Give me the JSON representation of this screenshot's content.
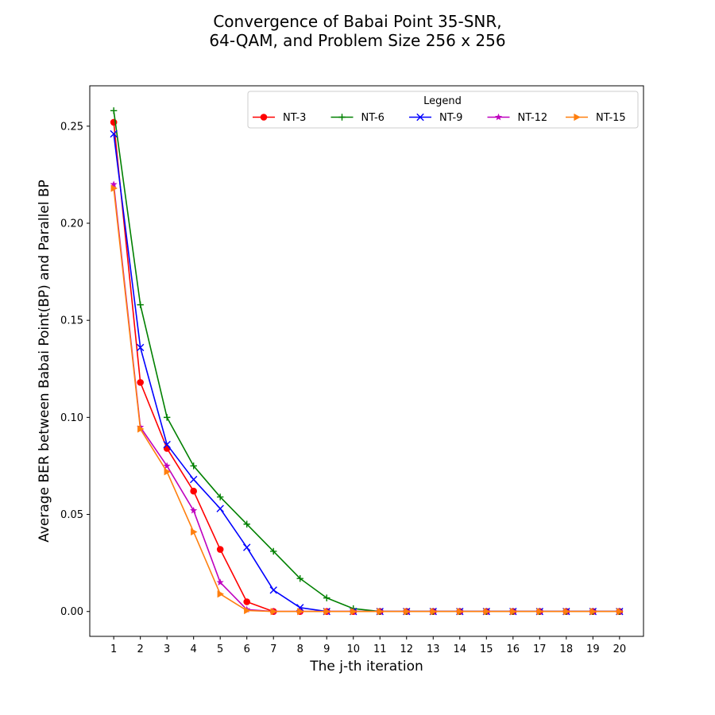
{
  "chart_data": {
    "type": "line",
    "title_lines": [
      "Convergence of Babai Point 35-SNR,",
      "64-QAM, and Problem Size 256 x 256"
    ],
    "xlabel": "The j-th iteration",
    "ylabel": "Average BER between Babai Point(BP) and Parallel BP",
    "x": [
      1,
      2,
      3,
      4,
      5,
      6,
      7,
      8,
      9,
      10,
      11,
      12,
      13,
      14,
      15,
      16,
      17,
      18,
      19,
      20
    ],
    "x_ticks": [
      "1",
      "2",
      "3",
      "4",
      "5",
      "6",
      "7",
      "8",
      "9",
      "10",
      "11",
      "12",
      "13",
      "14",
      "15",
      "16",
      "17",
      "18",
      "19",
      "20"
    ],
    "xlim": [
      0.1,
      20.9
    ],
    "ylim": [
      -0.0128,
      0.2708
    ],
    "y_ticks": [
      0.0,
      0.05,
      0.1,
      0.15,
      0.2,
      0.25
    ],
    "y_tick_labels": [
      "0.00",
      "0.05",
      "0.10",
      "0.15",
      "0.20",
      "0.25"
    ],
    "grid": false,
    "legend": {
      "title": "Legend",
      "placement": "top-right",
      "ncol": 5
    },
    "series": [
      {
        "name": "NT-3",
        "color": "#ff0000",
        "marker": "circle",
        "values": [
          0.252,
          0.118,
          0.084,
          0.062,
          0.032,
          0.005,
          0.0,
          0.0,
          0.0,
          0.0,
          0.0,
          0.0,
          0.0,
          0.0,
          0.0,
          0.0,
          0.0,
          0.0,
          0.0,
          0.0
        ]
      },
      {
        "name": "NT-6",
        "color": "#008000",
        "marker": "plus",
        "values": [
          0.258,
          0.158,
          0.1,
          0.075,
          0.059,
          0.045,
          0.031,
          0.017,
          0.007,
          0.0015,
          0.0,
          0.0,
          0.0,
          0.0,
          0.0,
          0.0,
          0.0,
          0.0,
          0.0,
          0.0
        ]
      },
      {
        "name": "NT-9",
        "color": "#0000ff",
        "marker": "x",
        "values": [
          0.246,
          0.136,
          0.086,
          0.068,
          0.053,
          0.033,
          0.011,
          0.002,
          0.0,
          0.0,
          0.0,
          0.0,
          0.0,
          0.0,
          0.0,
          0.0,
          0.0,
          0.0,
          0.0,
          0.0
        ]
      },
      {
        "name": "NT-12",
        "color": "#bf00bf",
        "marker": "star",
        "values": [
          0.22,
          0.095,
          0.075,
          0.052,
          0.015,
          0.001,
          0.0,
          0.0,
          0.0,
          0.0,
          0.0,
          0.0,
          0.0,
          0.0,
          0.0,
          0.0,
          0.0,
          0.0,
          0.0,
          0.0
        ]
      },
      {
        "name": "NT-15",
        "color": "#ff7f0e",
        "marker": "triangle-right",
        "values": [
          0.218,
          0.094,
          0.072,
          0.041,
          0.009,
          0.0005,
          0.0,
          0.0,
          0.0,
          0.0,
          0.0,
          0.0,
          0.0,
          0.0,
          0.0,
          0.0,
          0.0,
          0.0,
          0.0,
          0.0
        ]
      }
    ]
  }
}
